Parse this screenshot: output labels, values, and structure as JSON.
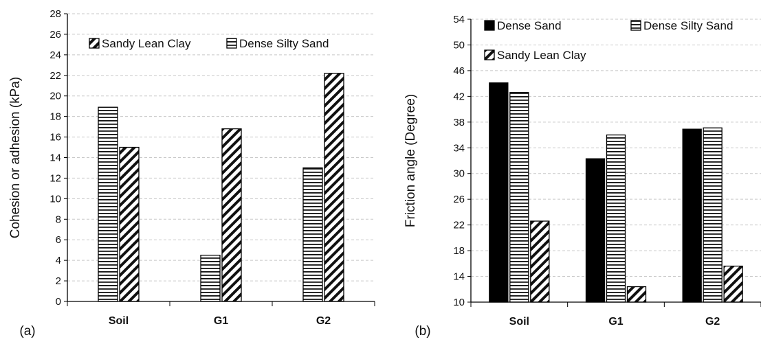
{
  "chart_data": [
    {
      "type": "bar",
      "panel_label": "(a)",
      "categories": [
        "Soil",
        "G1",
        "G2"
      ],
      "ylabel": "Cohesion or adhesion (kPa)",
      "xlabel": "",
      "ylim": [
        0,
        28
      ],
      "ytick_step": 2,
      "grid": true,
      "legend_position": "top",
      "series": [
        {
          "name": "Dense Silty Sand",
          "pattern": "horizontal-lines",
          "values": [
            18.9,
            4.5,
            13.0
          ]
        },
        {
          "name": "Sandy Lean Clay",
          "pattern": "diagonal-lines",
          "values": [
            15.0,
            16.8,
            22.2
          ]
        }
      ]
    },
    {
      "type": "bar",
      "panel_label": "(b)",
      "categories": [
        "Soil",
        "G1",
        "G2"
      ],
      "ylabel": "Friction angle (Degree)",
      "xlabel": "",
      "ylim": [
        10,
        54
      ],
      "ytick_step": 4,
      "grid": true,
      "legend_position": "top",
      "series": [
        {
          "name": "Dense Sand",
          "pattern": "solid-black",
          "values": [
            44.1,
            32.3,
            36.9
          ]
        },
        {
          "name": "Dense Silty Sand",
          "pattern": "horizontal-lines",
          "values": [
            42.6,
            36.0,
            37.1
          ]
        },
        {
          "name": "Sandy Lean Clay",
          "pattern": "diagonal-lines",
          "values": [
            22.6,
            12.4,
            15.6
          ]
        }
      ]
    }
  ]
}
